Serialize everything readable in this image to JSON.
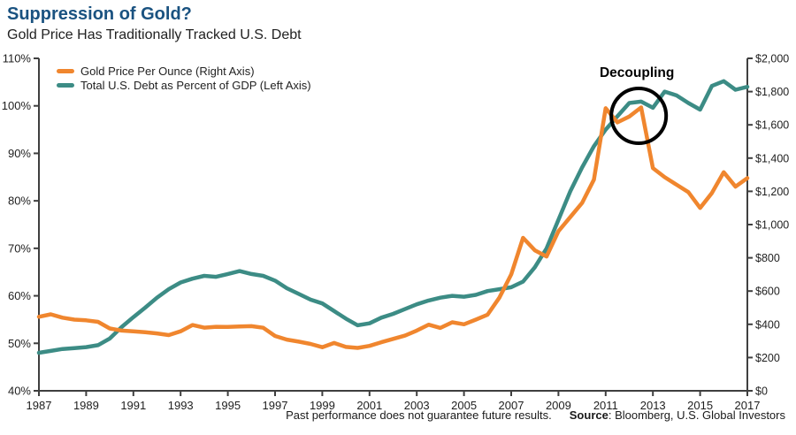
{
  "header": {
    "title": "Suppression of Gold?",
    "subtitle": "Gold Price Has Traditionally Tracked U.S. Debt"
  },
  "footer": {
    "disclaimer": "Past performance does not guarantee future results.",
    "source_label": "Source",
    "source_rest": ": Bloomberg, U.S. Global Investors"
  },
  "chart_data": {
    "type": "line",
    "title": "Suppression of Gold?",
    "subtitle": "Gold Price Has Traditionally Tracked U.S. Debt",
    "x_start": 1987,
    "x_end": 2017,
    "x_step": 0.5,
    "x_ticks": {
      "values": [
        1987,
        1989,
        1991,
        1993,
        1995,
        1997,
        1999,
        2001,
        2003,
        2005,
        2007,
        2009,
        2011,
        2013,
        2015,
        2017
      ],
      "labels": [
        "1987",
        "1989",
        "1991",
        "1993",
        "1995",
        "1997",
        "1999",
        "2001",
        "2003",
        "2005",
        "2007",
        "2009",
        "2011",
        "2013",
        "2015",
        "2017"
      ]
    },
    "left_axis": {
      "min": 40,
      "max": 110,
      "tick_values": [
        40,
        50,
        60,
        70,
        80,
        90,
        100,
        110
      ],
      "tick_labels": [
        "40%",
        "50%",
        "60%",
        "70%",
        "80%",
        "90%",
        "100%",
        "110%"
      ]
    },
    "right_axis": {
      "min": 0,
      "max": 2000,
      "tick_values": [
        0,
        200,
        400,
        600,
        800,
        1000,
        1200,
        1400,
        1600,
        1800,
        2000
      ],
      "tick_labels": [
        "$0",
        "$200",
        "$400",
        "$600",
        "$800",
        "$1,000",
        "$1,200",
        "$1,400",
        "$1,600",
        "$1,800",
        "$2,000"
      ]
    },
    "grid": "off",
    "legend_position": "top-left-inside",
    "series": [
      {
        "name": "Gold Price Per Ounce (Right Axis)",
        "axis": "right",
        "color": "#F0862E",
        "values": [
          445,
          460,
          440,
          428,
          424,
          415,
          375,
          362,
          358,
          352,
          345,
          335,
          358,
          396,
          380,
          385,
          384,
          387,
          389,
          379,
          330,
          308,
          296,
          282,
          262,
          288,
          264,
          258,
          270,
          292,
          312,
          332,
          362,
          398,
          378,
          412,
          400,
          428,
          458,
          560,
          700,
          920,
          845,
          808,
          960,
          1045,
          1130,
          1270,
          1700,
          1615,
          1650,
          1705,
          1340,
          1285,
          1240,
          1195,
          1100,
          1190,
          1315,
          1228,
          1280
        ]
      },
      {
        "name": "Total U.S. Debt as Percent of GDP (Left Axis)",
        "axis": "left",
        "color": "#3C8C85",
        "values": [
          48.0,
          48.4,
          48.8,
          49.0,
          49.2,
          49.6,
          51.0,
          53.4,
          55.5,
          57.5,
          59.6,
          61.4,
          62.8,
          63.6,
          64.2,
          64.0,
          64.6,
          65.2,
          64.6,
          64.2,
          63.2,
          61.6,
          60.4,
          59.2,
          58.4,
          56.8,
          55.2,
          53.8,
          54.2,
          55.4,
          56.2,
          57.2,
          58.2,
          59.0,
          59.6,
          60.0,
          59.8,
          60.2,
          61.0,
          61.4,
          61.8,
          63.0,
          66.0,
          70.0,
          76.0,
          82.0,
          87.0,
          91.5,
          95.0,
          97.8,
          100.6,
          100.9,
          99.6,
          103.0,
          102.2,
          100.6,
          99.2,
          104.2,
          105.2,
          103.4,
          104.0
        ]
      }
    ],
    "annotation": {
      "label": "Decoupling",
      "year": 2012.4,
      "left_value": 97.9,
      "radius_px": 31
    }
  }
}
